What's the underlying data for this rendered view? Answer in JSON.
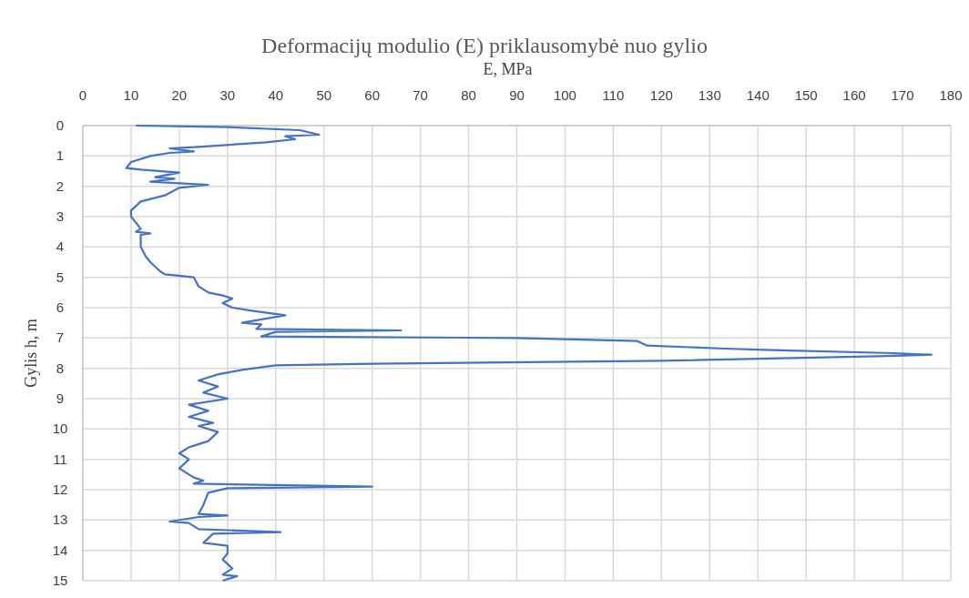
{
  "chart_data": {
    "type": "line",
    "title": "Deformacijų modulio (E) priklausomybė nuo gylio",
    "xlabel": "E, MPa",
    "ylabel": "Gylis h, m",
    "xlim": [
      0,
      180
    ],
    "xticks": [
      0,
      10,
      20,
      30,
      40,
      50,
      60,
      70,
      80,
      90,
      100,
      110,
      120,
      130,
      140,
      150,
      160,
      170,
      180
    ],
    "ylim": [
      15,
      0
    ],
    "yticks": [
      0,
      1,
      2,
      3,
      4,
      5,
      6,
      7,
      8,
      9,
      10,
      11,
      12,
      13,
      14,
      15
    ],
    "grid": true,
    "series": [
      {
        "color": "#4472c4",
        "x": [
          11,
          30,
          45,
          49,
          42,
          44,
          38,
          24,
          18,
          23,
          18,
          14,
          10,
          9,
          12,
          20,
          15,
          19,
          14,
          20,
          26,
          20,
          17,
          12,
          10,
          10,
          11,
          12,
          11,
          14,
          12,
          12,
          13,
          14,
          16,
          17,
          23,
          24,
          26,
          29,
          31,
          29,
          31,
          35,
          42,
          33,
          37,
          36,
          66,
          40,
          37,
          90,
          115,
          117,
          133,
          143,
          168,
          176,
          165,
          120,
          60,
          40,
          33,
          28,
          24,
          28,
          25,
          30,
          22,
          26,
          22,
          27,
          24,
          28,
          26,
          22,
          20,
          22,
          20,
          23,
          25,
          23,
          60,
          30,
          26,
          25,
          24,
          30,
          24,
          18,
          22,
          24,
          41,
          27,
          26,
          25,
          30,
          30,
          29,
          31,
          29,
          32,
          29
        ],
        "values": [
          0,
          0.05,
          0.15,
          0.3,
          0.35,
          0.45,
          0.55,
          0.7,
          0.75,
          0.85,
          0.9,
          1.0,
          1.2,
          1.4,
          1.45,
          1.55,
          1.7,
          1.75,
          1.85,
          1.9,
          1.95,
          2.05,
          2.3,
          2.5,
          2.8,
          3.0,
          3.2,
          3.4,
          3.5,
          3.55,
          3.6,
          4.0,
          4.3,
          4.5,
          4.8,
          4.9,
          5.0,
          5.3,
          5.5,
          5.6,
          5.7,
          5.85,
          6.0,
          6.1,
          6.25,
          6.5,
          6.55,
          6.7,
          6.75,
          6.8,
          6.95,
          7.0,
          7.1,
          7.25,
          7.35,
          7.4,
          7.5,
          7.55,
          7.6,
          7.75,
          7.85,
          7.9,
          8.05,
          8.2,
          8.4,
          8.6,
          8.8,
          9.0,
          9.2,
          9.4,
          9.6,
          9.8,
          9.9,
          10.1,
          10.4,
          10.6,
          10.8,
          11.0,
          11.3,
          11.6,
          11.7,
          11.8,
          11.9,
          11.95,
          12.1,
          12.5,
          12.8,
          12.85,
          12.9,
          13.05,
          13.1,
          13.3,
          13.4,
          13.45,
          13.6,
          13.75,
          13.85,
          14.1,
          14.3,
          14.6,
          14.8,
          14.85,
          15.0
        ]
      }
    ]
  }
}
